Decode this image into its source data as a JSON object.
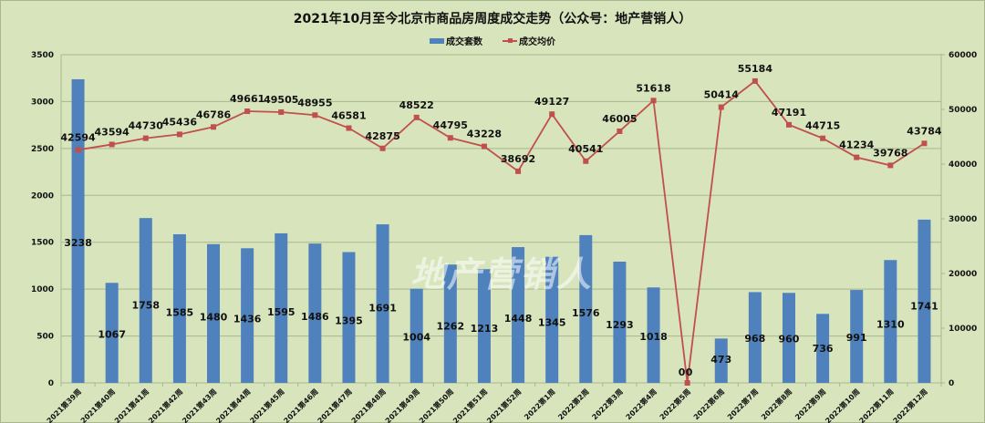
{
  "title": "2021年10月至今北京市商品房周度成交走势（公众号：地产营销人）",
  "legend": {
    "bar_label": "成交套数",
    "line_label": "成交均价"
  },
  "watermark": "地产营销人",
  "colors": {
    "bar": "#4f81bd",
    "line": "#c0504d",
    "background": "#d8e4bc",
    "grid": "#a9b78e"
  },
  "chart_data": {
    "type": "bar+line",
    "title": "2021年10月至今北京市商品房周度成交走势（公众号：地产营销人）",
    "categories": [
      "2021第39周",
      "2021第40周",
      "2021第41周",
      "2021第42周",
      "2021第43周",
      "2021第44周",
      "2021第45周",
      "2021第46周",
      "2021第47周",
      "2021第48周",
      "2021第49周",
      "2021第50周",
      "2021第51周",
      "2021第52周",
      "2022第1周",
      "2022第2周",
      "2022第3周",
      "2022第4周",
      "2022第5周",
      "2022第6周",
      "2022第7周",
      "2022第8周",
      "2022第9周",
      "2022第10周",
      "2022第11周",
      "2022第12周"
    ],
    "series": [
      {
        "name": "成交套数",
        "type": "bar",
        "axis": "left",
        "values": [
          3238,
          1067,
          1758,
          1585,
          1480,
          1436,
          1595,
          1486,
          1395,
          1691,
          1004,
          1262,
          1213,
          1448,
          1345,
          1576,
          1293,
          1018,
          0,
          473,
          968,
          960,
          736,
          991,
          1310,
          1741
        ]
      },
      {
        "name": "成交均价",
        "type": "line",
        "axis": "right",
        "values": [
          42594,
          43594,
          44730,
          45436,
          46786,
          49661,
          49505,
          48955,
          46581,
          42875,
          48522,
          44795,
          43228,
          38692,
          49127,
          40541,
          46005,
          51618,
          0,
          50414,
          55184,
          47191,
          44715,
          41234,
          39768,
          43784
        ]
      }
    ],
    "left_axis": {
      "ylim": [
        0,
        3500
      ],
      "ticks": [
        0,
        500,
        1000,
        1500,
        2000,
        2500,
        3000,
        3500
      ]
    },
    "right_axis": {
      "ylim": [
        0,
        60000
      ],
      "ticks": [
        0,
        10000,
        20000,
        30000,
        40000,
        50000,
        60000
      ]
    },
    "grid": true,
    "legend_position": "top"
  }
}
